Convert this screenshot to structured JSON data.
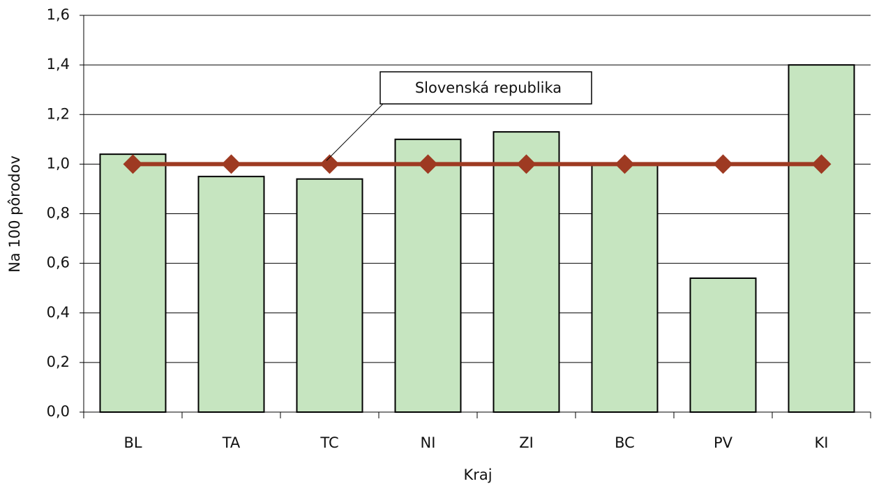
{
  "chart_data": {
    "type": "bar",
    "categories": [
      "BL",
      "TA",
      "TC",
      "NI",
      "ZI",
      "BC",
      "PV",
      "KI"
    ],
    "values": [
      1.04,
      0.95,
      0.94,
      1.1,
      1.13,
      1.0,
      0.54,
      1.4
    ],
    "color": "#c6e5c0",
    "line_series": {
      "name": "Slovenská republika",
      "color": "#9e3a22",
      "values": [
        1.0,
        1.0,
        1.0,
        1.0,
        1.0,
        1.0,
        1.0,
        1.0
      ]
    },
    "xlabel": "Kraj",
    "ylabel": "Na 100 pôrodov",
    "ylim": [
      0,
      1.6
    ],
    "yticks": [
      {
        "value": 0,
        "label": "0,0"
      },
      {
        "value": 0.2,
        "label": "0,2"
      },
      {
        "value": 0.4,
        "label": "0,4"
      },
      {
        "value": 0.6,
        "label": "0,6"
      },
      {
        "value": 0.8,
        "label": "0,8"
      },
      {
        "value": 1.0,
        "label": "1,0"
      },
      {
        "value": 1.2,
        "label": "1,2"
      },
      {
        "value": 1.4,
        "label": "1,4"
      },
      {
        "value": 1.6,
        "label": "1,6"
      }
    ],
    "grid": true
  }
}
